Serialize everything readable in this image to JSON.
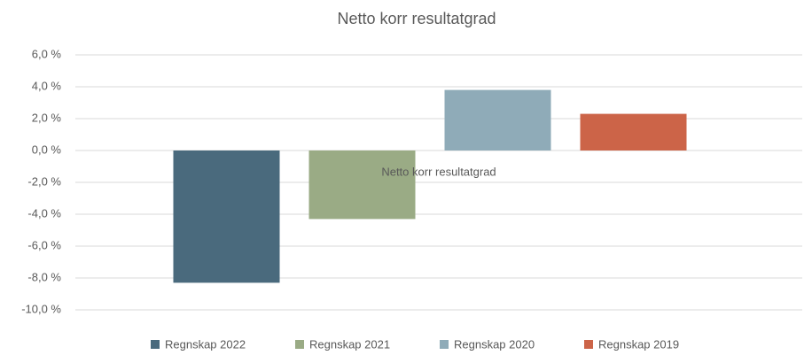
{
  "chart_data": {
    "type": "bar",
    "title": "Netto korr resultatgrad",
    "categories": [
      "Netto korr resultatgrad"
    ],
    "series": [
      {
        "name": "Regnskap 2022",
        "color": "#4a6a7d",
        "values": [
          -8.3
        ]
      },
      {
        "name": "Regnskap 2021",
        "color": "#9aab85",
        "values": [
          -4.3
        ]
      },
      {
        "name": "Regnskap 2020",
        "color": "#8fabb8",
        "values": [
          3.8
        ]
      },
      {
        "name": "Regnskap 2019",
        "color": "#cc6448",
        "values": [
          2.3
        ]
      }
    ],
    "ylim": [
      -10,
      6
    ],
    "yticks": [
      {
        "value": -10,
        "label": "-10,0 %"
      },
      {
        "value": -8,
        "label": "-8,0 %"
      },
      {
        "value": -6,
        "label": "-6,0 %"
      },
      {
        "value": -4,
        "label": "-4,0 %"
      },
      {
        "value": -2,
        "label": "-2,0 %"
      },
      {
        "value": 0,
        "label": "0,0 %"
      },
      {
        "value": 2,
        "label": "2,0 %"
      },
      {
        "value": 4,
        "label": "4,0 %"
      },
      {
        "value": 6,
        "label": "6,0 %"
      }
    ],
    "grid": true,
    "legend": "bottom"
  }
}
